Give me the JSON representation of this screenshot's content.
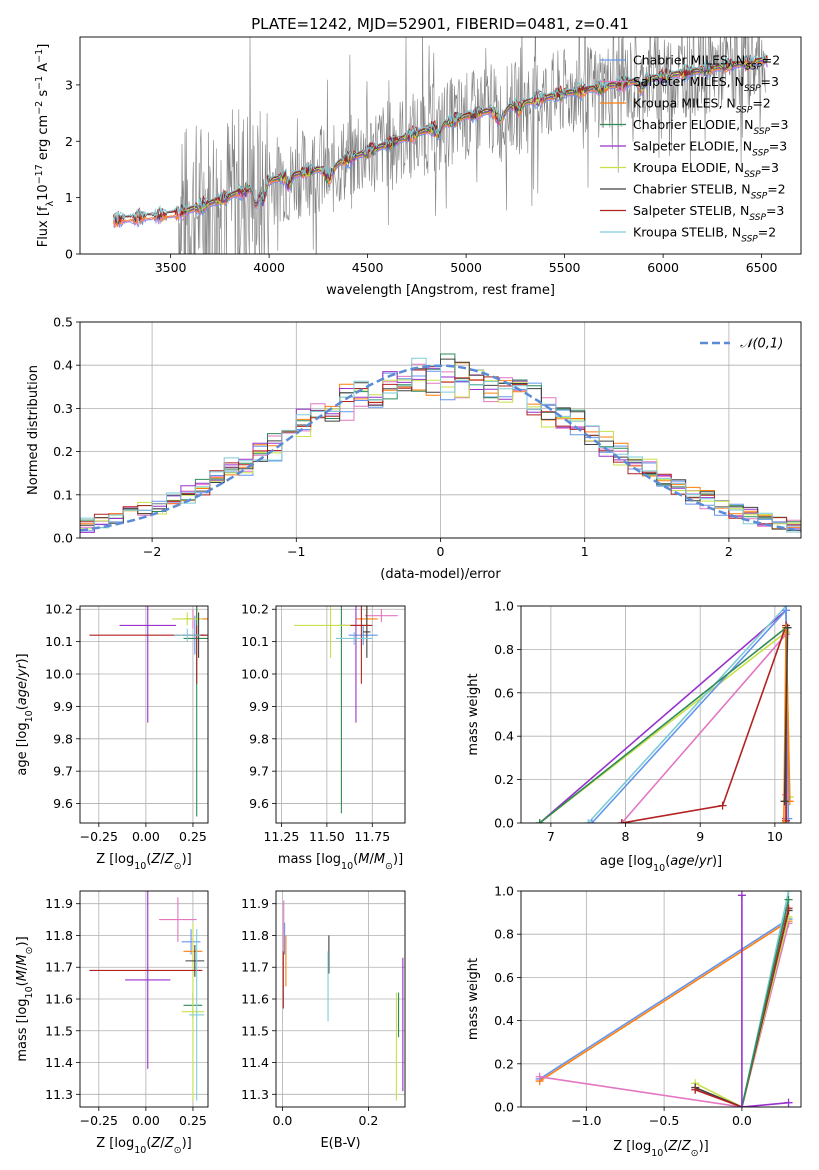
{
  "figure_title": "PLATE=1242, MJD=52901, FIBERID=0481, z=0.41",
  "colors": {
    "Chabrier MILES": "#6495ed",
    "Salpeter MILES": "#e377c2",
    "Kroupa MILES": "#ff7f0e",
    "Chabrier ELODIE": "#2e8b57",
    "Salpeter ELODIE": "#9932cc",
    "Kroupa ELODIE": "#c8e04a",
    "Chabrier STELIB": "#404040",
    "Salpeter STELIB": "#b22222",
    "Kroupa STELIB": "#7ecbd6",
    "data": "#808080",
    "normal": "#5b8bd6"
  },
  "chart_data": [
    {
      "id": "spectrum",
      "type": "line",
      "title": "PLATE=1242, MJD=52901, FIBERID=0481, z=0.41",
      "xlabel": "wavelength [Angstrom, rest frame]",
      "ylabel_parts": [
        "Flux [f",
        "λ",
        "10",
        "−17",
        " erg cm",
        "−2",
        " s",
        "−1",
        " A",
        "−1",
        "]"
      ],
      "xlim": [
        3040,
        6700
      ],
      "ylim": [
        0,
        3.85
      ],
      "xticks": [
        3500,
        4000,
        4500,
        5000,
        5500,
        6000,
        6500
      ],
      "yticks": [
        0,
        1,
        2,
        3
      ],
      "data_range": [
        3540,
        6520
      ],
      "model_range": [
        3210,
        6530
      ],
      "continuum": [
        [
          3210,
          0.6
        ],
        [
          3540,
          0.72
        ],
        [
          3700,
          0.9
        ],
        [
          4000,
          1.3
        ],
        [
          4300,
          1.55
        ],
        [
          4600,
          1.95
        ],
        [
          5000,
          2.45
        ],
        [
          5500,
          2.85
        ],
        [
          6000,
          3.15
        ],
        [
          6530,
          3.45
        ]
      ],
      "legend": [
        {
          "label": "Chabrier MILES, N",
          "sub": "SSP",
          "tail": "=2"
        },
        {
          "label": "Salpeter MILES, N",
          "sub": "SSP",
          "tail": "=3"
        },
        {
          "label": "Kroupa MILES, N",
          "sub": "SSP",
          "tail": "=2"
        },
        {
          "label": "Chabrier ELODIE, N",
          "sub": "SSP",
          "tail": "=3"
        },
        {
          "label": "Salpeter ELODIE, N",
          "sub": "SSP",
          "tail": "=3"
        },
        {
          "label": "Kroupa ELODIE, N",
          "sub": "SSP",
          "tail": "=3"
        },
        {
          "label": "Chabrier STELIB, N",
          "sub": "SSP",
          "tail": "=2"
        },
        {
          "label": "Salpeter STELIB, N",
          "sub": "SSP",
          "tail": "=3"
        },
        {
          "label": "Kroupa STELIB, N",
          "sub": "SSP",
          "tail": "=2"
        }
      ]
    },
    {
      "id": "residuals",
      "type": "line",
      "xlabel": "(data-model)/error",
      "ylabel": "Normed distribution",
      "xlim": [
        -2.5,
        2.5
      ],
      "ylim": [
        0,
        0.5
      ],
      "xticks": [
        -2,
        -1,
        0,
        1,
        2
      ],
      "yticks": [
        0.0,
        0.1,
        0.2,
        0.3,
        0.4,
        0.5
      ],
      "legend_label": "𝒩(0,1)",
      "bin_width": 0.1,
      "bin_start": -2.5
    },
    {
      "id": "age_vs_Z",
      "type": "scatter",
      "xlabel": "Z [log10(Z/Z⊙)]",
      "ylabel": "age [log10(age/yr)]",
      "xlim": [
        -0.35,
        0.33
      ],
      "ylim": [
        9.54,
        10.21
      ],
      "xticks": [
        -0.25,
        0.0,
        0.25
      ],
      "xtick_labels": [
        "−0.25",
        "0.00",
        "0.25"
      ],
      "yticks": [
        9.6,
        9.7,
        9.8,
        9.9,
        10.0,
        10.1,
        10.2
      ],
      "points": [
        {
          "model": "Chabrier MILES",
          "x": 0.26,
          "y": 10.12,
          "xerr": 0.06,
          "yerr": 0.06
        },
        {
          "model": "Salpeter MILES",
          "x": 0.25,
          "y": 10.17,
          "xerr": 0.04,
          "yerr": 0.03
        },
        {
          "model": "Kroupa MILES",
          "x": 0.27,
          "y": 10.17,
          "xerr": 0.07,
          "yerr": 0.06
        },
        {
          "model": "Chabrier ELODIE",
          "x": 0.27,
          "y": 10.11,
          "xerr": 0.07,
          "yerr": 0.55
        },
        {
          "model": "Salpeter ELODIE",
          "x": 0.01,
          "y": 10.15,
          "xerr": 0.15,
          "yerr": 0.3
        },
        {
          "model": "Kroupa ELODIE",
          "x": 0.22,
          "y": 10.17,
          "xerr": 0.08,
          "yerr": 0.02
        },
        {
          "model": "Chabrier STELIB",
          "x": 0.28,
          "y": 10.12,
          "xerr": 0.03,
          "yerr": 0.07
        },
        {
          "model": "Salpeter STELIB",
          "x": 0.1,
          "y": 10.12,
          "xerr": 0.4,
          "yerr": 0.0
        },
        {
          "model": "Salpeter STELIB",
          "x": 0.27,
          "y": 10.06,
          "xerr": 0.0,
          "yerr": 0.09
        },
        {
          "model": "Kroupa STELIB",
          "x": 0.22,
          "y": 10.12,
          "xerr": 0.07,
          "yerr": 0.02
        }
      ]
    },
    {
      "id": "age_vs_mass",
      "type": "scatter",
      "xlabel": "mass [log10(M/M⊙)]",
      "ylabel": "",
      "xlim": [
        11.22,
        11.93
      ],
      "ylim": [
        9.54,
        10.21
      ],
      "xticks": [
        11.25,
        11.5,
        11.75
      ],
      "xtick_labels": [
        "11.25",
        "11.50",
        "11.75"
      ],
      "yticks": [
        9.6,
        9.7,
        9.8,
        9.9,
        10.0,
        10.1,
        10.2
      ],
      "points": [
        {
          "model": "Chabrier MILES",
          "x": 11.7,
          "y": 10.12,
          "xerr": 0.08,
          "yerr": 0.03
        },
        {
          "model": "Salpeter MILES",
          "x": 11.8,
          "y": 10.18,
          "xerr": 0.09,
          "yerr": 0.02
        },
        {
          "model": "Kroupa MILES",
          "x": 11.72,
          "y": 10.17,
          "xerr": 0.06,
          "yerr": 0.05
        },
        {
          "model": "Chabrier ELODIE",
          "x": 11.58,
          "y": 10.15,
          "xerr": 0.02,
          "yerr": 0.58
        },
        {
          "model": "Salpeter ELODIE",
          "x": 11.66,
          "y": 10.15,
          "xerr": 0.07,
          "yerr": 0.3
        },
        {
          "model": "Kroupa ELODIE",
          "x": 11.52,
          "y": 10.15,
          "xerr": 0.2,
          "yerr": 0.1
        },
        {
          "model": "Chabrier STELIB",
          "x": 11.72,
          "y": 10.13,
          "xerr": 0.02,
          "yerr": 0.08
        },
        {
          "model": "Salpeter STELIB",
          "x": 11.69,
          "y": 10.15,
          "xerr": 0.06,
          "yerr": 0.18
        },
        {
          "model": "Kroupa STELIB",
          "x": 11.65,
          "y": 10.11,
          "xerr": 0.1,
          "yerr": 0.02
        }
      ]
    },
    {
      "id": "weight_vs_age",
      "type": "line",
      "xlabel": "age [log10(age/yr)]",
      "ylabel": "mass weight",
      "xlim": [
        6.6,
        10.35
      ],
      "ylim": [
        0,
        1
      ],
      "xticks": [
        7,
        8,
        9,
        10
      ],
      "yticks": [
        0.0,
        0.2,
        0.4,
        0.6,
        0.8,
        1.0
      ],
      "series": [
        {
          "model": "Salpeter ELODIE",
          "x": [
            6.85,
            10.15,
            10.15
          ],
          "y": [
            0.0,
            0.98,
            0.02
          ]
        },
        {
          "model": "Kroupa ELODIE",
          "x": [
            6.85,
            10.15,
            10.2
          ],
          "y": [
            0.0,
            0.88,
            0.12
          ]
        },
        {
          "model": "Kroupa STELIB",
          "x": [
            7.5,
            10.15,
            10.18
          ],
          "y": [
            0.0,
            1.0,
            0.0
          ]
        },
        {
          "model": "Chabrier MILES",
          "x": [
            7.55,
            10.15,
            10.18
          ],
          "y": [
            0.0,
            0.98,
            0.02
          ]
        },
        {
          "model": "Salpeter MILES",
          "x": [
            7.95,
            10.15,
            10.15
          ],
          "y": [
            0.0,
            0.87,
            0.13
          ]
        },
        {
          "model": "Salpeter STELIB",
          "x": [
            7.95,
            9.3,
            10.15,
            10.15
          ],
          "y": [
            0.0,
            0.08,
            0.91,
            0.01
          ]
        },
        {
          "model": "Chabrier ELODIE",
          "x": [
            6.85,
            10.15
          ],
          "y": [
            0.0,
            0.9
          ]
        },
        {
          "model": "Kroupa MILES",
          "x": [
            10.12,
            10.15,
            10.2
          ],
          "y": [
            0.0,
            0.9,
            0.1
          ]
        },
        {
          "model": "Chabrier STELIB",
          "x": [
            10.13,
            10.17
          ],
          "y": [
            0.1,
            0.9
          ]
        }
      ]
    },
    {
      "id": "mass_vs_Z",
      "type": "scatter",
      "xlabel": "Z [log10(Z/Z⊙)]",
      "ylabel": "mass [log10(M/M⊙)]",
      "xlim": [
        -0.35,
        0.33
      ],
      "ylim": [
        11.26,
        11.94
      ],
      "xticks": [
        -0.25,
        0.0,
        0.25
      ],
      "xtick_labels": [
        "−0.25",
        "0.00",
        "0.25"
      ],
      "yticks": [
        11.3,
        11.4,
        11.5,
        11.6,
        11.7,
        11.8,
        11.9
      ],
      "points": [
        {
          "model": "Chabrier MILES",
          "x": 0.24,
          "y": 11.78,
          "xerr": 0.05,
          "yerr": 0.04
        },
        {
          "model": "Salpeter MILES",
          "x": 0.17,
          "y": 11.85,
          "xerr": 0.1,
          "yerr": 0.07
        },
        {
          "model": "Kroupa MILES",
          "x": 0.25,
          "y": 11.75,
          "xerr": 0.05,
          "yerr": 0.04
        },
        {
          "model": "Chabrier ELODIE",
          "x": 0.25,
          "y": 11.58,
          "xerr": 0.05,
          "yerr": 0.04
        },
        {
          "model": "Salpeter ELODIE",
          "x": 0.01,
          "y": 11.66,
          "xerr": 0.12,
          "yerr": 0.28
        },
        {
          "model": "Kroupa ELODIE",
          "x": 0.25,
          "y": 11.56,
          "xerr": 0.06,
          "yerr": 0.28
        },
        {
          "model": "Chabrier STELIB",
          "x": 0.26,
          "y": 11.72,
          "xerr": 0.05,
          "yerr": 0.05
        },
        {
          "model": "Salpeter STELIB",
          "x": 0.0,
          "y": 11.69,
          "xerr": 0.3,
          "yerr": 0.0
        },
        {
          "model": "Kroupa STELIB",
          "x": 0.27,
          "y": 11.55,
          "xerr": 0.04,
          "yerr": 0.27
        }
      ]
    },
    {
      "id": "mass_vs_EBV",
      "type": "scatter",
      "xlabel": "E(B-V)",
      "ylabel": "",
      "xlim": [
        -0.015,
        0.285
      ],
      "ylim": [
        11.26,
        11.94
      ],
      "xticks": [
        0.0,
        0.2
      ],
      "xtick_labels": [
        "0.0",
        "0.2"
      ],
      "yticks": [
        11.3,
        11.4,
        11.5,
        11.6,
        11.7,
        11.8,
        11.9
      ],
      "points": [
        {
          "model": "Chabrier MILES",
          "x": 0.005,
          "y": 11.79,
          "xerr": 0.0,
          "yerr": 0.05
        },
        {
          "model": "Salpeter MILES",
          "x": 0.003,
          "y": 11.83,
          "xerr": 0.0,
          "yerr": 0.08
        },
        {
          "model": "Kroupa MILES",
          "x": 0.008,
          "y": 11.72,
          "xerr": 0.0,
          "yerr": 0.08
        },
        {
          "model": "Chabrier ELODIE",
          "x": 0.27,
          "y": 11.55,
          "xerr": 0.0,
          "yerr": 0.07
        },
        {
          "model": "Salpeter ELODIE",
          "x": 0.28,
          "y": 11.52,
          "xerr": 0.0,
          "yerr": 0.21
        },
        {
          "model": "Kroupa ELODIE",
          "x": 0.265,
          "y": 11.45,
          "xerr": 0.0,
          "yerr": 0.17
        },
        {
          "model": "Chabrier STELIB",
          "x": 0.108,
          "y": 11.74,
          "xerr": 0.0,
          "yerr": 0.06
        },
        {
          "model": "Salpeter STELIB",
          "x": 0.002,
          "y": 11.66,
          "xerr": 0.0,
          "yerr": 0.09
        },
        {
          "model": "Kroupa STELIB",
          "x": 0.106,
          "y": 11.64,
          "xerr": 0.0,
          "yerr": 0.11
        }
      ]
    },
    {
      "id": "weight_vs_Z",
      "type": "line",
      "xlabel": "Z [log10(Z/Z⊙)]",
      "ylabel": "mass weight",
      "xlim": [
        -1.42,
        0.38
      ],
      "ylim": [
        0,
        1
      ],
      "xticks": [
        -1.0,
        -0.5,
        0.0
      ],
      "xtick_labels": [
        "−1.0",
        "−0.5",
        "0.0"
      ],
      "yticks": [
        0.0,
        0.2,
        0.4,
        0.6,
        0.8,
        1.0
      ],
      "series": [
        {
          "model": "Chabrier MILES",
          "x": [
            -1.3,
            0.3
          ],
          "y": [
            0.13,
            0.87
          ]
        },
        {
          "model": "Kroupa MILES",
          "x": [
            -1.3,
            0.3
          ],
          "y": [
            0.12,
            0.86
          ]
        },
        {
          "model": "Salpeter MILES",
          "x": [
            -1.3,
            0.0,
            0.3
          ],
          "y": [
            0.14,
            0.0,
            0.85
          ]
        },
        {
          "model": "Kroupa ELODIE",
          "x": [
            -0.3,
            0.0,
            0.3
          ],
          "y": [
            0.11,
            0.0,
            0.88
          ]
        },
        {
          "model": "Chabrier STELIB",
          "x": [
            -0.3,
            0.0,
            0.3
          ],
          "y": [
            0.09,
            0.0,
            0.91
          ]
        },
        {
          "model": "Salpeter STELIB",
          "x": [
            -0.3,
            0.0,
            0.3
          ],
          "y": [
            0.08,
            0.0,
            0.92
          ]
        },
        {
          "model": "Kroupa STELIB",
          "x": [
            0.0,
            0.3
          ],
          "y": [
            0.0,
            1.0
          ]
        },
        {
          "model": "Chabrier ELODIE",
          "x": [
            0.0,
            0.3
          ],
          "y": [
            0.0,
            0.96
          ]
        },
        {
          "model": "Salpeter ELODIE",
          "x": [
            0.0,
            0.0,
            0.3
          ],
          "y": [
            0.98,
            0.0,
            0.02
          ]
        }
      ]
    }
  ]
}
